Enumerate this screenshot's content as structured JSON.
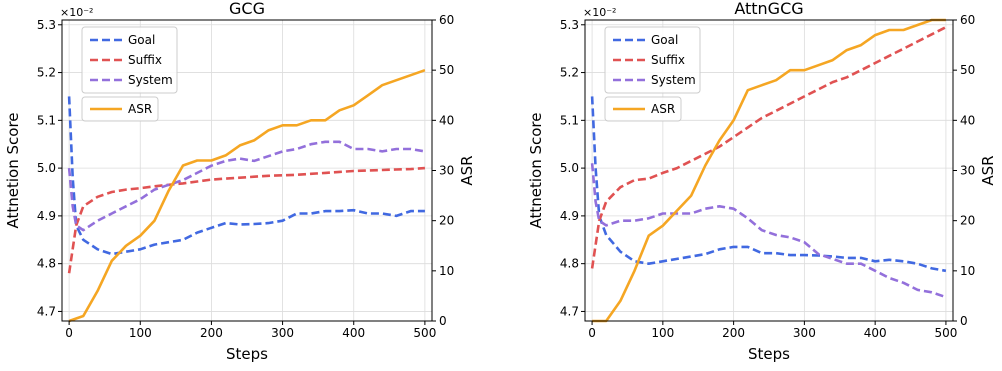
{
  "chart_data": [
    {
      "type": "line",
      "title": "GCG",
      "xlabel": "Steps",
      "ylabel_left": "Attnetion Score",
      "ylabel_right": "ASR",
      "y_left_multiplier": "×10⁻²",
      "xlim": [
        -10,
        510
      ],
      "ylim_left": [
        4.68,
        5.31
      ],
      "ylim_right": [
        0,
        60
      ],
      "x_ticks": [
        0,
        100,
        200,
        300,
        400,
        500
      ],
      "y_left_ticks": [
        4.7,
        4.8,
        4.9,
        5.0,
        5.1,
        5.2,
        5.3
      ],
      "y_right_ticks": [
        0,
        10,
        20,
        30,
        40,
        50,
        60
      ],
      "grid": true,
      "legend_position": "top-left",
      "series": [
        {
          "name": "Goal",
          "axis": "left",
          "style": "dashed",
          "color": "#4169e1",
          "x": [
            0,
            5,
            10,
            20,
            40,
            60,
            80,
            100,
            120,
            140,
            160,
            180,
            200,
            220,
            240,
            260,
            280,
            300,
            320,
            340,
            360,
            380,
            400,
            420,
            440,
            460,
            480,
            500
          ],
          "y": [
            5.15,
            4.98,
            4.88,
            4.85,
            4.83,
            4.82,
            4.825,
            4.83,
            4.84,
            4.845,
            4.85,
            4.865,
            4.875,
            4.885,
            4.882,
            4.883,
            4.885,
            4.89,
            4.905,
            4.905,
            4.91,
            4.91,
            4.912,
            4.905,
            4.905,
            4.9,
            4.91,
            4.91
          ]
        },
        {
          "name": "Suffix",
          "axis": "left",
          "style": "dashed",
          "color": "#e05252",
          "x": [
            0,
            10,
            20,
            40,
            60,
            80,
            100,
            120,
            140,
            160,
            180,
            200,
            220,
            240,
            260,
            280,
            300,
            320,
            340,
            360,
            380,
            400,
            420,
            440,
            460,
            480,
            500
          ],
          "y": [
            4.78,
            4.88,
            4.92,
            4.94,
            4.95,
            4.955,
            4.958,
            4.962,
            4.965,
            4.968,
            4.972,
            4.976,
            4.978,
            4.98,
            4.982,
            4.984,
            4.985,
            4.986,
            4.988,
            4.99,
            4.992,
            4.994,
            4.995,
            4.996,
            4.997,
            4.998,
            5.0
          ]
        },
        {
          "name": "System",
          "axis": "left",
          "style": "dashed",
          "color": "#9370db",
          "x": [
            0,
            5,
            10,
            20,
            40,
            60,
            80,
            100,
            120,
            140,
            160,
            180,
            200,
            220,
            240,
            260,
            280,
            300,
            320,
            340,
            360,
            380,
            400,
            420,
            440,
            460,
            480,
            500
          ],
          "y": [
            5.0,
            4.92,
            4.88,
            4.87,
            4.89,
            4.905,
            4.92,
            4.935,
            4.955,
            4.965,
            4.975,
            4.99,
            5.005,
            5.015,
            5.02,
            5.015,
            5.025,
            5.035,
            5.04,
            5.05,
            5.055,
            5.055,
            5.04,
            5.04,
            5.035,
            5.04,
            5.04,
            5.035
          ]
        },
        {
          "name": "ASR",
          "axis": "right",
          "style": "solid",
          "color": "#f5a623",
          "x": [
            0,
            20,
            40,
            60,
            80,
            100,
            120,
            140,
            160,
            180,
            200,
            220,
            240,
            260,
            280,
            300,
            320,
            340,
            360,
            380,
            400,
            420,
            440,
            460,
            480,
            500
          ],
          "y": [
            0,
            1,
            6,
            12,
            15,
            17,
            20,
            26,
            31,
            32,
            32,
            33,
            35,
            36,
            38,
            39,
            39,
            40,
            40,
            42,
            43,
            45,
            47,
            48,
            49,
            50
          ]
        }
      ]
    },
    {
      "type": "line",
      "title": "AttnGCG",
      "xlabel": "Steps",
      "ylabel_left": "Attnetion Score",
      "ylabel_right": "ASR",
      "y_left_multiplier": "×10⁻²",
      "xlim": [
        -10,
        510
      ],
      "ylim_left": [
        4.68,
        5.31
      ],
      "ylim_right": [
        0,
        60
      ],
      "x_ticks": [
        0,
        100,
        200,
        300,
        400,
        500
      ],
      "y_left_ticks": [
        4.7,
        4.8,
        4.9,
        5.0,
        5.1,
        5.2,
        5.3
      ],
      "y_right_ticks": [
        0,
        10,
        20,
        30,
        40,
        50,
        60
      ],
      "grid": true,
      "legend_position": "top-left",
      "series": [
        {
          "name": "Goal",
          "axis": "left",
          "style": "dashed",
          "color": "#4169e1",
          "x": [
            0,
            5,
            10,
            20,
            40,
            60,
            80,
            100,
            120,
            140,
            160,
            180,
            200,
            220,
            240,
            260,
            280,
            300,
            320,
            340,
            360,
            380,
            400,
            420,
            440,
            460,
            480,
            500
          ],
          "y": [
            5.15,
            5.0,
            4.9,
            4.86,
            4.825,
            4.805,
            4.8,
            4.805,
            4.81,
            4.815,
            4.82,
            4.83,
            4.835,
            4.835,
            4.822,
            4.822,
            4.818,
            4.818,
            4.817,
            4.815,
            4.812,
            4.812,
            4.805,
            4.808,
            4.805,
            4.8,
            4.79,
            4.785
          ]
        },
        {
          "name": "Suffix",
          "axis": "left",
          "style": "dashed",
          "color": "#e05252",
          "x": [
            0,
            10,
            20,
            40,
            60,
            80,
            100,
            120,
            140,
            160,
            180,
            200,
            220,
            240,
            260,
            280,
            300,
            320,
            340,
            360,
            380,
            400,
            420,
            440,
            460,
            480,
            500
          ],
          "y": [
            4.79,
            4.89,
            4.93,
            4.96,
            4.975,
            4.978,
            4.99,
            5.0,
            5.015,
            5.03,
            5.045,
            5.065,
            5.085,
            5.105,
            5.12,
            5.135,
            5.15,
            5.165,
            5.18,
            5.19,
            5.205,
            5.22,
            5.235,
            5.25,
            5.265,
            5.28,
            5.295
          ]
        },
        {
          "name": "System",
          "axis": "left",
          "style": "dashed",
          "color": "#9370db",
          "x": [
            0,
            5,
            10,
            20,
            40,
            60,
            80,
            100,
            120,
            140,
            160,
            180,
            200,
            220,
            240,
            260,
            280,
            300,
            320,
            340,
            360,
            380,
            400,
            420,
            440,
            460,
            480,
            500
          ],
          "y": [
            5.01,
            4.93,
            4.89,
            4.88,
            4.89,
            4.89,
            4.895,
            4.905,
            4.905,
            4.905,
            4.915,
            4.92,
            4.915,
            4.895,
            4.87,
            4.86,
            4.855,
            4.845,
            4.82,
            4.81,
            4.8,
            4.8,
            4.785,
            4.77,
            4.76,
            4.745,
            4.74,
            4.73
          ]
        },
        {
          "name": "ASR",
          "axis": "right",
          "style": "solid",
          "color": "#f5a623",
          "x": [
            0,
            20,
            40,
            60,
            80,
            100,
            120,
            140,
            160,
            180,
            200,
            220,
            240,
            260,
            280,
            300,
            320,
            340,
            360,
            380,
            400,
            420,
            440,
            460,
            480,
            500
          ],
          "y": [
            0,
            0,
            4,
            10,
            17,
            19,
            22,
            25,
            31,
            36,
            40,
            46,
            47,
            48,
            50,
            50,
            51,
            52,
            54,
            55,
            57,
            58,
            58,
            59,
            60,
            60
          ]
        }
      ]
    }
  ]
}
